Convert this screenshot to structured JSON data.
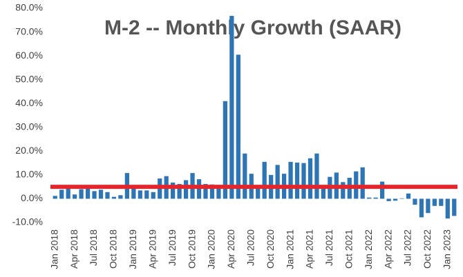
{
  "chart_data": {
    "type": "bar",
    "title": "M-2 --  Monthly Growth (SAAR)",
    "categories": [
      "Jan 2018",
      null,
      null,
      "Apr 2018",
      null,
      null,
      "Jul 2018",
      null,
      null,
      "Oct 2018",
      null,
      null,
      "Jan 2019",
      null,
      null,
      "Apr 2019",
      null,
      null,
      "Jul 2019",
      null,
      null,
      "Oct 2019",
      null,
      null,
      "Jan 2020",
      null,
      null,
      "Apr 2020",
      null,
      null,
      "Jul 2020",
      null,
      null,
      "Oct 2020",
      null,
      null,
      "Jan 2021",
      null,
      null,
      "Apr 2021",
      null,
      null,
      "Jul 2021",
      null,
      null,
      "Oct 2021",
      null,
      null,
      "Jan 2022",
      null,
      null,
      "Apr 2022",
      null,
      null,
      "Jul 2022",
      null,
      null,
      "Oct 2022",
      null,
      null,
      "Jan 2023",
      null
    ],
    "values": [
      1.2,
      3.8,
      4.2,
      1.8,
      4.0,
      4.5,
      3.2,
      3.8,
      2.8,
      0.8,
      1.5,
      10.8,
      5.5,
      3.5,
      3.5,
      2.8,
      8.5,
      9.5,
      6.8,
      6.2,
      7.8,
      10.8,
      8.2,
      6.2,
      6.0,
      5.8,
      41.0,
      76.8,
      60.5,
      19.0,
      10.5,
      4.5,
      15.5,
      10.0,
      14.2,
      10.5,
      15.5,
      15.2,
      15.0,
      17.0,
      19.0,
      5.0,
      9.2,
      11.0,
      7.0,
      8.8,
      11.5,
      13.2,
      0.5,
      0.5,
      7.2,
      -1.0,
      -0.8,
      0.2,
      2.2,
      -2.5,
      -7.8,
      -6.0,
      -3.0,
      -3.0,
      -8.3,
      -7.2
    ],
    "color": "#2e75b6",
    "ylim": [
      -10,
      80
    ],
    "yticks": [
      {
        "value": -10,
        "label": "-10.0%"
      },
      {
        "value": 0,
        "label": "0.0%"
      },
      {
        "value": 10,
        "label": "10.0%"
      },
      {
        "value": 20,
        "label": "20.0%"
      },
      {
        "value": 30,
        "label": "30.0%"
      },
      {
        "value": 40,
        "label": "40.0%"
      },
      {
        "value": 50,
        "label": "50.0%"
      },
      {
        "value": 60,
        "label": "60.0%"
      },
      {
        "value": 70,
        "label": "70.0%"
      },
      {
        "value": 80,
        "label": "80.0%"
      }
    ],
    "reference_line": {
      "value": 5,
      "color": "#e3262b"
    }
  }
}
